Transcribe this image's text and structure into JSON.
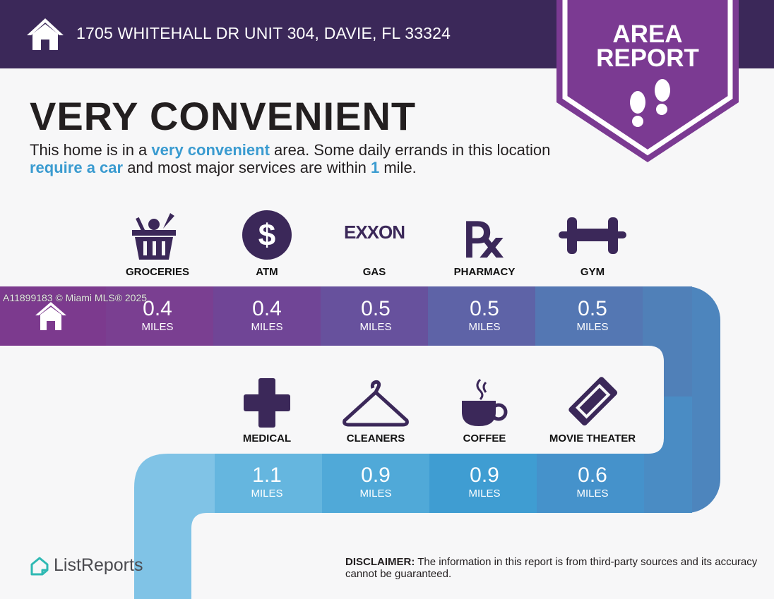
{
  "header": {
    "address": "1705 WHITEHALL DR UNIT 304, DAVIE, FL 33324",
    "home_icon": "house-icon"
  },
  "badge": {
    "line1": "AREA",
    "line2": "REPORT",
    "icon": "footprints-icon",
    "color": "#7b3a92"
  },
  "headline": "VERY CONVENIENT",
  "description": {
    "p1": "This home is in a ",
    "h1": "very convenient",
    "p2": " area. Some daily errands in this location ",
    "h2": "require a car",
    "p3": " and most major services are within ",
    "h3": "1",
    "p4": " mile."
  },
  "watermark": "A11899183 © Miami MLS® 2025",
  "row1": [
    {
      "label": "GROCERIES",
      "value": "0.4",
      "unit": "MILES",
      "icon": "grocery-basket-icon",
      "color": "#7a3f91"
    },
    {
      "label": "ATM",
      "value": "0.4",
      "unit": "MILES",
      "icon": "dollar-icon",
      "color": "#704596"
    },
    {
      "label": "GAS",
      "value": "0.5",
      "unit": "MILES",
      "icon": "exxon-logo-icon",
      "logo_text": "EXXON",
      "color": "#67519d"
    },
    {
      "label": "PHARMACY",
      "value": "0.5",
      "unit": "MILES",
      "icon": "rx-icon",
      "color": "#5e63a7"
    },
    {
      "label": "GYM",
      "value": "0.5",
      "unit": "MILES",
      "icon": "dumbbell-icon",
      "color": "#5477b3"
    }
  ],
  "row2": [
    {
      "label": "MEDICAL",
      "value": "1.1",
      "unit": "MILES",
      "icon": "medical-cross-icon",
      "color": "#65b6df"
    },
    {
      "label": "CLEANERS",
      "value": "0.9",
      "unit": "MILES",
      "icon": "hanger-icon",
      "color": "#50a9d8"
    },
    {
      "label": "COFFEE",
      "value": "0.9",
      "unit": "MILES",
      "icon": "coffee-cup-icon",
      "color": "#3f9dd2"
    },
    {
      "label": "MOVIE THEATER",
      "value": "0.6",
      "unit": "MILES",
      "icon": "ticket-icon",
      "color": "#4592cb"
    }
  ],
  "footer": {
    "logo": "ListReports",
    "disclaimer_label": "DISCLAIMER:",
    "disclaimer_text": " The information in this report is from third-party sources and its accuracy cannot be guaranteed."
  }
}
